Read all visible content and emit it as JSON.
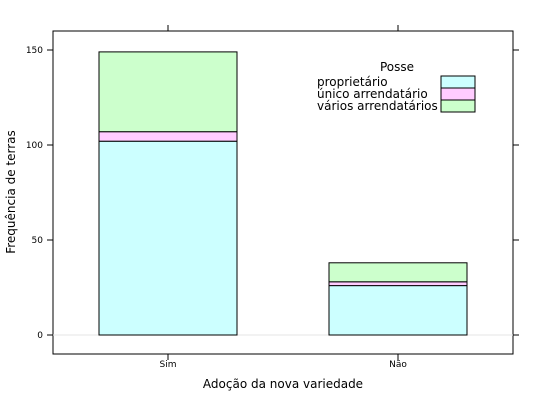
{
  "chart_data": {
    "type": "bar",
    "stacked": true,
    "categories": [
      "Sim",
      "Não"
    ],
    "xlabel": "Adoção da nova variedade",
    "ylabel": "Frequência de terras",
    "ylim": [
      -10,
      160
    ],
    "yticks": [
      0,
      50,
      100,
      150
    ],
    "grid": false,
    "legend": {
      "title": "Posse",
      "placement": "top-right",
      "entries": [
        "proprietário",
        "único arrendatário",
        "vários arrendatários"
      ]
    },
    "series": [
      {
        "name": "proprietário",
        "values": [
          102,
          26
        ],
        "color": "#ccffff"
      },
      {
        "name": "único arrendatário",
        "values": [
          5,
          2
        ],
        "color": "#ffccff"
      },
      {
        "name": "vários arrendatários",
        "values": [
          42,
          10
        ],
        "color": "#ccffcc"
      }
    ]
  }
}
